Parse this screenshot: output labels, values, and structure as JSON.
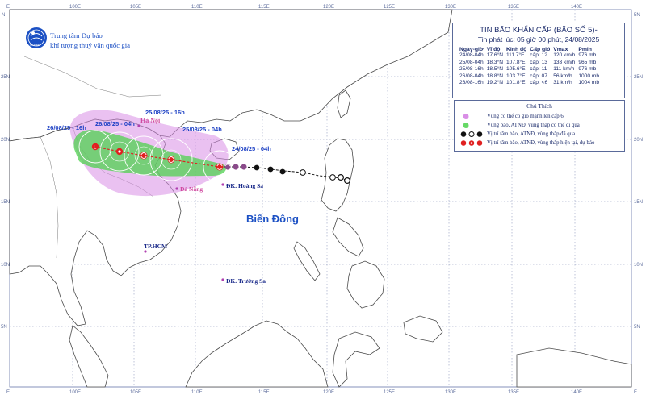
{
  "organization": {
    "line1": "Trung tâm Dự báo",
    "line2": "khí tượng thuỷ văn quốc gia",
    "logo_text": "NCHMF"
  },
  "bulletin": {
    "title": "TIN BÃO KHẨN CẤP (BÃO SỐ 5)-",
    "issued": "Tin phát lúc: 05 giờ 00 phút, 24/08/2025",
    "columns": [
      "Ngày-giờ",
      "Vĩ độ",
      "Kinh độ",
      "Cấp gió",
      "Vmax",
      "Pmin"
    ],
    "rows": [
      [
        "24/08-04h",
        "17.6°N",
        "111.7°E",
        "cấp: 12",
        "120 km/h",
        "976 mb"
      ],
      [
        "25/08-04h",
        "18.3°N",
        "107.8°E",
        "cấp: 13",
        "133 km/h",
        "965 mb"
      ],
      [
        "25/08-16h",
        "18.5°N",
        "105.6°E",
        "cấp: 11",
        "111 km/h",
        "976 mb"
      ],
      [
        "26/08-04h",
        "18.8°N",
        "103.7°E",
        "cấp: 07",
        "56 km/h",
        "1000 mb"
      ],
      [
        "26/08-16h",
        "19.2°N",
        "101.8°E",
        "cấp: <6",
        "31 km/h",
        "1004 mb"
      ]
    ]
  },
  "legend": {
    "title": "Chú Thích",
    "items": [
      {
        "label": "Vùng có thể có gió mạnh lên cấp 6",
        "color": "#d98ee6"
      },
      {
        "label": "Vùng bão, ATNĐ, vùng thấp có thể đi qua",
        "color": "#66d966"
      },
      {
        "label": "Vị trí tâm bão, ATNĐ, vùng thấp đã qua",
        "color": "#111111"
      },
      {
        "label": "Vị trí tâm bão, ATNĐ, vùng thấp hiện tại, dự báo",
        "color": "#e02020"
      }
    ]
  },
  "map": {
    "lon_ticks": [
      "100E",
      "105E",
      "110E",
      "115E",
      "120E",
      "125E",
      "130E",
      "135E",
      "140E"
    ],
    "lat_ticks": [
      "25N",
      "20N",
      "15N",
      "10N",
      "5N"
    ],
    "corner_labels": [
      "N",
      "E",
      "5N",
      "E",
      "E"
    ],
    "sea_name": "Biển Đông",
    "places": [
      {
        "name": "Hà Nội"
      },
      {
        "name": "Đà Nẵng"
      },
      {
        "name": "ĐK. Hoàng Sa"
      },
      {
        "name": "TP.HCM"
      },
      {
        "name": "ĐK. Trường Sa"
      }
    ],
    "time_labels": [
      "26/08/25 - 16h",
      "26/08/25 - 04h",
      "25/08/25 - 16h",
      "25/08/25 - 04h",
      "24/08/25 - 04h"
    ]
  },
  "colors": {
    "ocean": "#ffffff",
    "land": "#ffffff",
    "coast": "#555555",
    "grid": "#5a6a9a",
    "purple_zone": "#d98ee6",
    "green_zone": "#66d966",
    "track": "#e02020"
  }
}
